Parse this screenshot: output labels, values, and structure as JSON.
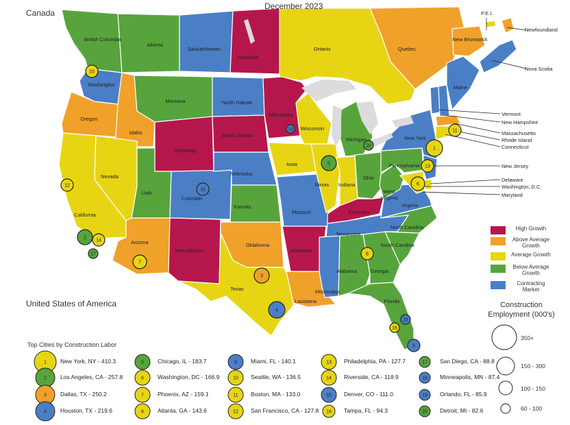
{
  "title": "December 2023",
  "countries": {
    "canada": "Canada",
    "usa": "United States of America"
  },
  "colors": {
    "High Growth": "#b5174d",
    "Above Average Growth": "#f0a12a",
    "Average Growth": "#e7d514",
    "Below Average Growth": "#57a43c",
    "Contracting Market": "#4a7fc6"
  },
  "growth_legend": [
    {
      "label": "High Growth",
      "color": "#b5174d"
    },
    {
      "label": "Above Average Growth",
      "color": "#f0a12a"
    },
    {
      "label": "Average Growth",
      "color": "#e7d514"
    },
    {
      "label": "Below Average Growth",
      "color": "#57a43c"
    },
    {
      "label": "Contracting Market",
      "color": "#4a7fc6"
    }
  ],
  "employment_legend": {
    "title": "Construction Employment (000's)",
    "bins": [
      "350+",
      "150 - 300",
      "100 - 150",
      "60 - 100"
    ]
  },
  "cities_header": "Top Cities by Construction Labor",
  "cities": [
    {
      "rank": "1",
      "text": "New York, NY - 410.3",
      "color": "#e7d514"
    },
    {
      "rank": "2",
      "text": "Los Angeles, CA - 257.8",
      "color": "#57a43c"
    },
    {
      "rank": "3",
      "text": "Dallas, TX - 250.2",
      "color": "#f0a12a"
    },
    {
      "rank": "4",
      "text": "Houston, TX - 219.6",
      "color": "#4a7fc6"
    },
    {
      "rank": "5",
      "text": "Chicago, IL - 183.7",
      "color": "#57a43c"
    },
    {
      "rank": "6",
      "text": "Washington, DC - 166.9",
      "color": "#e7d514"
    },
    {
      "rank": "7",
      "text": "Phoenix, AZ - 159.1",
      "color": "#e7d514"
    },
    {
      "rank": "8",
      "text": "Atlanta, GA - 143.6",
      "color": "#e7d514"
    },
    {
      "rank": "9",
      "text": "Miami, FL - 140.1",
      "color": "#4a7fc6"
    },
    {
      "rank": "10",
      "text": "Seattle, WA - 136.5",
      "color": "#e7d514"
    },
    {
      "rank": "11",
      "text": "Boston, MA - 133.0",
      "color": "#e7d514"
    },
    {
      "rank": "12",
      "text": "San Francisco, CA - 127.8",
      "color": "#e7d514"
    },
    {
      "rank": "13",
      "text": "Philadelphia, PA - 127.7",
      "color": "#e7d514"
    },
    {
      "rank": "14",
      "text": "Riverside, CA - 118.9",
      "color": "#e7d514"
    },
    {
      "rank": "15",
      "text": "Denver, CO - 111.0",
      "color": "#4a7fc6"
    },
    {
      "rank": "16",
      "text": "Tampa, FL - 94.3",
      "color": "#e7d514"
    },
    {
      "rank": "17",
      "text": "San Diego, CA - 88.8",
      "color": "#57a43c"
    },
    {
      "rank": "18",
      "text": "Minneapolis, MN - 87.4",
      "color": "#4a7fc6"
    },
    {
      "rank": "19",
      "text": "Orlando, FL - 85.9",
      "color": "#4a7fc6"
    },
    {
      "rank": "20",
      "text": "Detroit, MI - 82.6",
      "color": "#57a43c"
    }
  ],
  "regions": [
    {
      "name": "British Columbia",
      "class": "Below Average Growth"
    },
    {
      "name": "Alberta",
      "class": "Below Average Growth"
    },
    {
      "name": "Saskatchewan",
      "class": "Contracting Market"
    },
    {
      "name": "Manitoba",
      "class": "High Growth"
    },
    {
      "name": "Ontario",
      "class": "Average Growth"
    },
    {
      "name": "Quebec",
      "class": "Above Average Growth"
    },
    {
      "name": "New Brunswick",
      "class": "Above Average Growth"
    },
    {
      "name": "Nova Scotia",
      "class": "Contracting Market"
    },
    {
      "name": "P.E.I.",
      "class": "Average Growth"
    },
    {
      "name": "Newfoundland",
      "class": "Above Average Growth"
    },
    {
      "name": "Washington",
      "class": "Contracting Market"
    },
    {
      "name": "Oregon",
      "class": "Above Average Growth"
    },
    {
      "name": "California",
      "class": "Average Growth"
    },
    {
      "name": "Idaho",
      "class": "Above Average Growth"
    },
    {
      "name": "Nevada",
      "class": "Average Growth"
    },
    {
      "name": "Montana",
      "class": "Below Average Growth"
    },
    {
      "name": "Wyoming",
      "class": "High Growth"
    },
    {
      "name": "Utah",
      "class": "Below Average Growth"
    },
    {
      "name": "Arizona",
      "class": "Above Average Growth"
    },
    {
      "name": "Colorado",
      "class": "Contracting Market"
    },
    {
      "name": "New Mexico",
      "class": "High Growth"
    },
    {
      "name": "North Dakota",
      "class": "Contracting Market"
    },
    {
      "name": "South Dakota",
      "class": "High Growth"
    },
    {
      "name": "Nebraska",
      "class": "Contracting Market"
    },
    {
      "name": "Kansas",
      "class": "Below Average Growth"
    },
    {
      "name": "Oklahoma",
      "class": "Above Average Growth"
    },
    {
      "name": "Texas",
      "class": "Average Growth"
    },
    {
      "name": "Minnesota",
      "class": "High Growth"
    },
    {
      "name": "Iowa",
      "class": "Average Growth"
    },
    {
      "name": "Missouri",
      "class": "Contracting Market"
    },
    {
      "name": "Arkansas",
      "class": "High Growth"
    },
    {
      "name": "Louisiana",
      "class": "Above Average Growth"
    },
    {
      "name": "Wisconsin",
      "class": "Average Growth"
    },
    {
      "name": "Illinois",
      "class": "Average Growth"
    },
    {
      "name": "Michigan",
      "class": "Below Average Growth"
    },
    {
      "name": "Indiana",
      "class": "Average Growth"
    },
    {
      "name": "Ohio",
      "class": "Below Average Growth"
    },
    {
      "name": "Kentucky",
      "class": "High Growth"
    },
    {
      "name": "Tennessee",
      "class": "Contracting Market"
    },
    {
      "name": "Mississippi",
      "class": "Contracting Market"
    },
    {
      "name": "Alabama",
      "class": "Below Average Growth"
    },
    {
      "name": "Georgia",
      "class": "Below Average Growth"
    },
    {
      "name": "Florida",
      "class": "Below Average Growth"
    },
    {
      "name": "South Carolina",
      "class": "Below Average Growth"
    },
    {
      "name": "North Carolina",
      "class": "Below Average Growth"
    },
    {
      "name": "Virginia",
      "class": "Contracting Market"
    },
    {
      "name": "West Virginia",
      "class": "Below Average Growth"
    },
    {
      "name": "Pennsylvania",
      "class": "Below Average Growth"
    },
    {
      "name": "New York",
      "class": "Contracting Market"
    },
    {
      "name": "Maine",
      "class": "Contracting Market"
    },
    {
      "name": "Vermont",
      "class": "Contracting Market"
    },
    {
      "name": "New Hampshire",
      "class": "Contracting Market"
    },
    {
      "name": "Massachusetts",
      "class": "Above Average Growth"
    },
    {
      "name": "Rhode Island",
      "class": "Average Growth"
    },
    {
      "name": "Connecticut",
      "class": "Average Growth"
    },
    {
      "name": "New Jersey",
      "class": "Contracting Market"
    },
    {
      "name": "Delaware",
      "class": "Average Growth"
    },
    {
      "name": "Washington, D.C.",
      "class": "Average Growth"
    },
    {
      "name": "Maryland",
      "class": "Average Growth"
    }
  ]
}
